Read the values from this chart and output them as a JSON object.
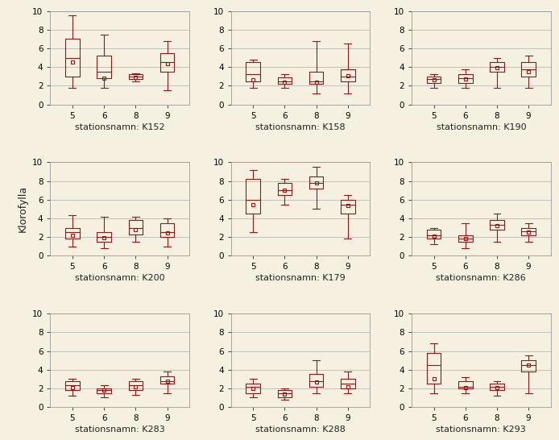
{
  "stations": [
    "K152",
    "K158",
    "K190",
    "K200",
    "K179",
    "K286",
    "K283",
    "K288",
    "K293"
  ],
  "months": [
    5,
    6,
    8,
    9
  ],
  "background_color": "#f5f0e0",
  "box_color": "#8b1a1a",
  "box_facecolor": "#ffffff",
  "grid_color": "#cccccc",
  "ylabel": "Klorofylla",
  "xlabel_prefix": "stationsnamn: ",
  "ylim": [
    0,
    10
  ],
  "yticks": [
    0,
    2,
    4,
    6,
    8,
    10
  ],
  "boxplots": {
    "K152": {
      "5": {
        "whislo": 1.8,
        "q1": 3.0,
        "med": 5.0,
        "q3": 7.0,
        "whishi": 9.5,
        "mean": 4.5
      },
      "6": {
        "whislo": 1.8,
        "q1": 2.8,
        "med": 3.5,
        "q3": 5.2,
        "whishi": 7.5,
        "mean": 2.8
      },
      "8": {
        "whislo": 2.5,
        "q1": 2.7,
        "med": 3.0,
        "q3": 3.2,
        "whishi": 3.3,
        "mean": 2.9
      },
      "9": {
        "whislo": 1.5,
        "q1": 3.5,
        "med": 4.5,
        "q3": 5.5,
        "whishi": 6.8,
        "mean": 4.4
      }
    },
    "K158": {
      "5": {
        "whislo": 1.8,
        "q1": 2.5,
        "med": 3.2,
        "q3": 4.5,
        "whishi": 4.8,
        "mean": 2.6
      },
      "6": {
        "whislo": 1.8,
        "q1": 2.2,
        "med": 2.5,
        "q3": 2.9,
        "whishi": 3.2,
        "mean": 2.4
      },
      "8": {
        "whislo": 1.2,
        "q1": 2.2,
        "med": 2.5,
        "q3": 3.5,
        "whishi": 6.8,
        "mean": 2.4
      },
      "9": {
        "whislo": 1.2,
        "q1": 2.5,
        "med": 3.0,
        "q3": 3.8,
        "whishi": 6.5,
        "mean": 3.1
      }
    },
    "K190": {
      "5": {
        "whislo": 1.8,
        "q1": 2.3,
        "med": 2.7,
        "q3": 3.0,
        "whishi": 3.2,
        "mean": 2.6
      },
      "6": {
        "whislo": 1.8,
        "q1": 2.3,
        "med": 2.8,
        "q3": 3.2,
        "whishi": 3.8,
        "mean": 2.7
      },
      "8": {
        "whislo": 1.8,
        "q1": 3.5,
        "med": 4.0,
        "q3": 4.5,
        "whishi": 5.0,
        "mean": 3.9
      },
      "9": {
        "whislo": 1.8,
        "q1": 3.0,
        "med": 3.8,
        "q3": 4.5,
        "whishi": 5.2,
        "mean": 3.5
      }
    },
    "K200": {
      "5": {
        "whislo": 1.0,
        "q1": 1.8,
        "med": 2.5,
        "q3": 3.0,
        "whishi": 4.3,
        "mean": 2.2
      },
      "6": {
        "whislo": 0.8,
        "q1": 1.5,
        "med": 2.0,
        "q3": 2.5,
        "whishi": 4.2,
        "mean": 1.9
      },
      "8": {
        "whislo": 1.5,
        "q1": 2.3,
        "med": 3.0,
        "q3": 3.8,
        "whishi": 4.2,
        "mean": 2.8
      },
      "9": {
        "whislo": 1.0,
        "q1": 2.0,
        "med": 2.5,
        "q3": 3.5,
        "whishi": 4.0,
        "mean": 2.4
      }
    },
    "K179": {
      "5": {
        "whislo": 2.5,
        "q1": 4.5,
        "med": 6.0,
        "q3": 8.2,
        "whishi": 9.2,
        "mean": 5.5
      },
      "6": {
        "whislo": 5.5,
        "q1": 6.5,
        "med": 7.0,
        "q3": 7.8,
        "whishi": 8.2,
        "mean": 7.0
      },
      "8": {
        "whislo": 5.0,
        "q1": 7.2,
        "med": 7.8,
        "q3": 8.5,
        "whishi": 9.5,
        "mean": 7.8
      },
      "9": {
        "whislo": 1.8,
        "q1": 4.5,
        "med": 5.5,
        "q3": 6.0,
        "whishi": 6.5,
        "mean": 5.4
      }
    },
    "K286": {
      "5": {
        "whislo": 1.2,
        "q1": 1.8,
        "med": 2.2,
        "q3": 2.8,
        "whishi": 3.0,
        "mean": 2.1
      },
      "6": {
        "whislo": 0.8,
        "q1": 1.5,
        "med": 1.8,
        "q3": 2.2,
        "whishi": 3.5,
        "mean": 1.8
      },
      "8": {
        "whislo": 1.5,
        "q1": 2.8,
        "med": 3.3,
        "q3": 3.8,
        "whishi": 4.5,
        "mean": 3.2
      },
      "9": {
        "whislo": 1.5,
        "q1": 2.2,
        "med": 2.6,
        "q3": 3.0,
        "whishi": 3.5,
        "mean": 2.5
      }
    },
    "K283": {
      "5": {
        "whislo": 1.2,
        "q1": 1.8,
        "med": 2.3,
        "q3": 2.8,
        "whishi": 3.0,
        "mean": 2.1
      },
      "6": {
        "whislo": 1.0,
        "q1": 1.5,
        "med": 1.8,
        "q3": 2.0,
        "whishi": 2.3,
        "mean": 1.8
      },
      "8": {
        "whislo": 1.3,
        "q1": 1.8,
        "med": 2.3,
        "q3": 2.8,
        "whishi": 3.0,
        "mean": 2.2
      },
      "9": {
        "whislo": 1.5,
        "q1": 2.5,
        "med": 2.8,
        "q3": 3.3,
        "whishi": 3.8,
        "mean": 2.8
      }
    },
    "K288": {
      "5": {
        "whislo": 1.0,
        "q1": 1.5,
        "med": 2.2,
        "q3": 2.5,
        "whishi": 3.0,
        "mean": 2.0
      },
      "6": {
        "whislo": 0.8,
        "q1": 1.0,
        "med": 1.5,
        "q3": 1.8,
        "whishi": 2.0,
        "mean": 1.4
      },
      "8": {
        "whislo": 1.5,
        "q1": 2.2,
        "med": 2.8,
        "q3": 3.5,
        "whishi": 5.0,
        "mean": 2.7
      },
      "9": {
        "whislo": 1.5,
        "q1": 2.0,
        "med": 2.5,
        "q3": 3.0,
        "whishi": 3.8,
        "mean": 2.2
      }
    },
    "K293": {
      "5": {
        "whislo": 1.5,
        "q1": 2.5,
        "med": 4.5,
        "q3": 5.8,
        "whishi": 6.8,
        "mean": 3.0
      },
      "6": {
        "whislo": 1.5,
        "q1": 2.0,
        "med": 2.2,
        "q3": 2.8,
        "whishi": 3.2,
        "mean": 2.1
      },
      "8": {
        "whislo": 1.2,
        "q1": 1.8,
        "med": 2.2,
        "q3": 2.5,
        "whishi": 2.8,
        "mean": 2.1
      },
      "9": {
        "whislo": 1.5,
        "q1": 3.8,
        "med": 4.5,
        "q3": 5.0,
        "whishi": 5.5,
        "mean": 4.5
      }
    }
  }
}
